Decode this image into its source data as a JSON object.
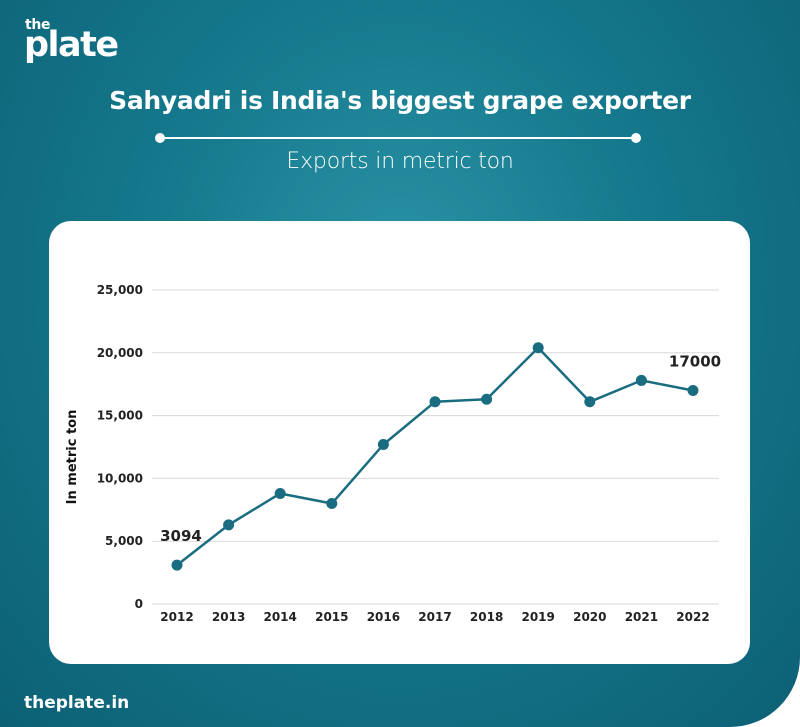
{
  "brand": {
    "logo_small": "the",
    "logo_big": "plate"
  },
  "title": "Sahyadri is India's biggest grape exporter",
  "subtitle": "Exports in metric ton",
  "footer": "theplate.in",
  "colors": {
    "panel": "#15788c",
    "line": "#1a6d80",
    "grid": "#d9d9d9"
  },
  "chart_data": {
    "type": "line",
    "x": [
      "2012",
      "2013",
      "2014",
      "2015",
      "2016",
      "2017",
      "2018",
      "2019",
      "2020",
      "2021",
      "2022"
    ],
    "series": [
      {
        "values": [
          3094,
          6300,
          8800,
          8000,
          12700,
          16100,
          16300,
          20400,
          16100,
          17800,
          17000
        ]
      }
    ],
    "ylabel": "In metric ton",
    "ylim": [
      0,
      25000
    ],
    "yticks": [
      0,
      5000,
      10000,
      15000,
      20000,
      25000
    ],
    "ytick_labels": [
      "0",
      "5,000",
      "10,000",
      "15,000",
      "20,000",
      "25,000"
    ],
    "data_labels": [
      {
        "index": 0,
        "text": "3094"
      },
      {
        "index": 10,
        "text": "17000"
      }
    ],
    "grid": true,
    "legend": "none"
  }
}
